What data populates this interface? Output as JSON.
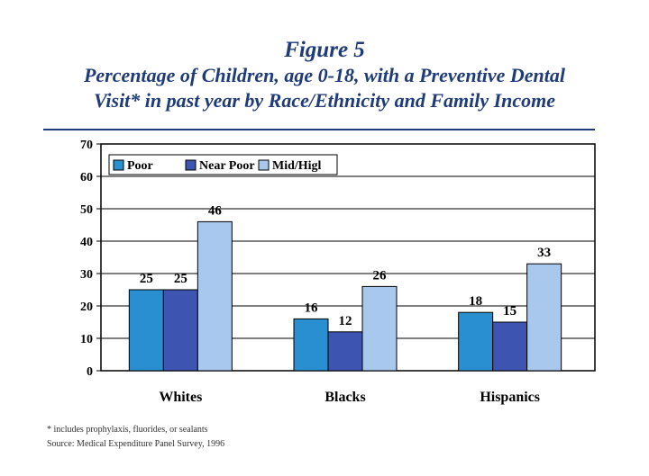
{
  "figure_label": "Figure 5",
  "title_line1": "Percentage of Children, age 0-18, with a Preventive Dental",
  "title_line2": "Visit* in past year by Race/Ethnicity and Family Income",
  "footnote": "* includes prophylaxis, fluorides, or sealants",
  "source": "Source: Medical Expenditure Panel Survey, 1996",
  "colors": {
    "poor": "#2a8fd0",
    "near_poor": "#3d55b0",
    "mid_high": "#a9c8ee",
    "title": "#1f3b78"
  },
  "chart_data": {
    "type": "bar",
    "categories": [
      "Whites",
      "Blacks",
      "Hispanics"
    ],
    "series": [
      {
        "name": "Poor",
        "values": [
          25,
          16,
          18
        ]
      },
      {
        "name": "Near Poor",
        "values": [
          25,
          12,
          15
        ]
      },
      {
        "name": "Mid/High",
        "values": [
          46,
          26,
          33
        ]
      }
    ],
    "legend_labels": [
      "Poor",
      "Near Poor",
      "Mid/Higl"
    ],
    "yticks": [
      "0",
      "10",
      "20",
      "30",
      "40",
      "50",
      "60",
      "70"
    ],
    "ylim": [
      0,
      70
    ],
    "grid": true,
    "legend_position": "top-left",
    "xlabel": "",
    "ylabel": ""
  }
}
